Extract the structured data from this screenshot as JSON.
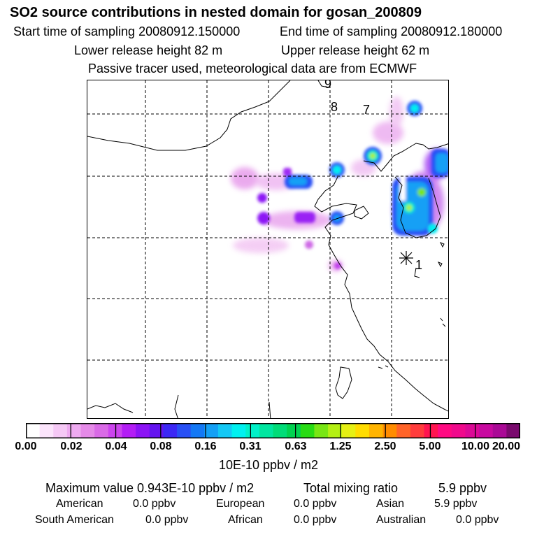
{
  "header": {
    "title": "SO2 source contributions in nested domain for gosan_200809",
    "start_label": "Start time of sampling 20080912.150000",
    "end_label": "End time of sampling 20080912.180000",
    "lower_label": "Lower release height   82 m",
    "upper_label": "Upper release height   62 m",
    "tracer_note": "Passive tracer used, meteorological data are from ECMWF"
  },
  "map": {
    "trajectory_labels": [
      "9",
      "8",
      "7",
      "1"
    ],
    "receptor_marker": "asterisk-icon"
  },
  "colorbar": {
    "colors": [
      "#ffffff",
      "#fbe4fb",
      "#f5c8f5",
      "#eeaaf0",
      "#e58ae8",
      "#d96ae6",
      "#cc44ee",
      "#b31ef5",
      "#8c14f5",
      "#6414f0",
      "#3c28f5",
      "#2850f5",
      "#1478f5",
      "#14a0f5",
      "#14c8f5",
      "#00f0f0",
      "#00f0c8",
      "#00e6a0",
      "#00dc78",
      "#00d250",
      "#28dc14",
      "#78e614",
      "#b4f014",
      "#e6f014",
      "#ffdc00",
      "#ffb400",
      "#ff8c00",
      "#ff6428",
      "#ff3c3c",
      "#ff1450",
      "#ff0a82",
      "#f00a8c",
      "#dc0a96",
      "#c80aa0",
      "#aa0a96",
      "#7a0a6e"
    ],
    "tick_labels": [
      "0.00",
      "0.02",
      "0.04",
      "0.08",
      "0.16",
      "0.31",
      "0.63",
      "1.25",
      "2.50",
      "5.00",
      "10.00",
      "20.00"
    ],
    "unit": "10E-10 ppbv / m2"
  },
  "summary": {
    "max_label": "Maximum value  0.943E-10 ppbv / m2",
    "total_label": "Total mixing ratio",
    "total_value": "5.9 ppbv",
    "regions": [
      {
        "name": "American",
        "value": "0.0 ppbv"
      },
      {
        "name": "European",
        "value": "0.0 ppbv"
      },
      {
        "name": "Asian",
        "value": "5.9 ppbv"
      },
      {
        "name": "South American",
        "value": "0.0 ppbv"
      },
      {
        "name": "African",
        "value": "0.0 ppbv"
      },
      {
        "name": "Australian",
        "value": "0.0 ppbv"
      }
    ]
  }
}
